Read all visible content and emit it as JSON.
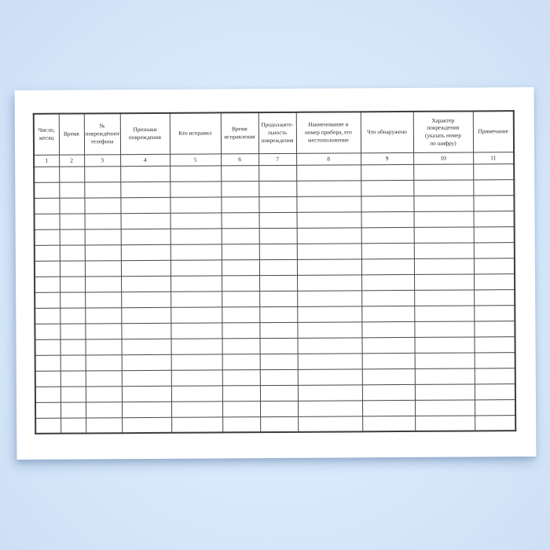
{
  "colors": {
    "background_center": "#e7f2fe",
    "background_edge": "#cddff5",
    "paper": "#ffffff",
    "grid_line": "#474747",
    "text": "#2b2b2b"
  },
  "table": {
    "headers": [
      {
        "label": "Число,\nмесяц"
      },
      {
        "label": "Время"
      },
      {
        "label": "№\nповреждённого\nтелефона"
      },
      {
        "label": "Признаки\nповреждения"
      },
      {
        "label": "Кто исправил"
      },
      {
        "label": "Время\nисправления"
      },
      {
        "label": "Продолжите-\nльность\nповреждения"
      },
      {
        "label": "Наименование и\nномер прибора, его\nместоположение"
      },
      {
        "label": "Что обнаружено"
      },
      {
        "label": "Характер\nповреждения\n(указать номер\nпо шифру)"
      },
      {
        "label": "Примечание"
      }
    ],
    "column_numbers": [
      "1",
      "2",
      "3",
      "4",
      "5",
      "6",
      "7",
      "8",
      "9",
      "10",
      "11"
    ],
    "empty_row_count": 17,
    "empty_cell_value": ""
  }
}
